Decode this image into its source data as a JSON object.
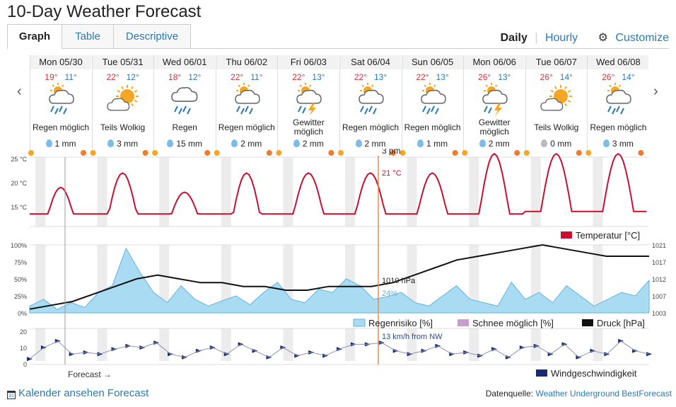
{
  "title": "10-Day Weather Forecast",
  "tabs": [
    {
      "label": "Graph",
      "active": true
    },
    {
      "label": "Table",
      "active": false
    },
    {
      "label": "Descriptive",
      "active": false
    }
  ],
  "view": {
    "daily": "Daily",
    "hourly": "Hourly",
    "customize": "Customize"
  },
  "days": [
    {
      "date": "Mon 05/30",
      "hi": "19°",
      "lo": "11°",
      "icon": "rain-sun-icon",
      "cond": "Regen möglich",
      "precip": "1 mm"
    },
    {
      "date": "Tue 05/31",
      "hi": "22°",
      "lo": "12°",
      "icon": "partly-cloudy-icon",
      "cond": "Teils Wolkig",
      "precip": "3 mm"
    },
    {
      "date": "Wed 06/01",
      "hi": "18°",
      "lo": "12°",
      "icon": "rain-icon",
      "cond": "Regen",
      "precip": "15 mm"
    },
    {
      "date": "Thu 06/02",
      "hi": "22°",
      "lo": "11°",
      "icon": "rain-sun-icon",
      "cond": "Regen möglich",
      "precip": "2 mm"
    },
    {
      "date": "Fri 06/03",
      "hi": "22°",
      "lo": "13°",
      "icon": "thunder-sun-icon",
      "cond": "Gewitter möglich",
      "precip": "2 mm"
    },
    {
      "date": "Sat 06/04",
      "hi": "22°",
      "lo": "13°",
      "icon": "rain-sun-icon",
      "cond": "Regen möglich",
      "precip": "2 mm"
    },
    {
      "date": "Sun 06/05",
      "hi": "22°",
      "lo": "13°",
      "icon": "rain-sun-icon",
      "cond": "Regen möglich",
      "precip": "1 mm"
    },
    {
      "date": "Mon 06/06",
      "hi": "26°",
      "lo": "13°",
      "icon": "thunder-sun-icon",
      "cond": "Gewitter möglich",
      "precip": "2 mm"
    },
    {
      "date": "Tue 06/07",
      "hi": "26°",
      "lo": "14°",
      "icon": "partly-cloudy-icon",
      "cond": "Teils Wolkig",
      "precip": "0 mm"
    },
    {
      "date": "Wed 06/08",
      "hi": "26°",
      "lo": "14°",
      "icon": "rain-sun-icon",
      "cond": "Regen möglich",
      "precip": "3 mm"
    }
  ],
  "graph": {
    "cursor_time": "3 pm",
    "cursor_temp": "21 °C",
    "cursor_pressure": "1010 hPa",
    "cursor_rain": "24%",
    "cursor_wind": "13 km/h from NW",
    "forecast_label": "Forecast →",
    "temp_ticks": [
      "25 °C",
      "20 °C",
      "15 °C"
    ],
    "pct_ticks": [
      "100%",
      "75%",
      "50%",
      "25%",
      "0%"
    ],
    "hpa_ticks": [
      "1021",
      "1017",
      "1012",
      "1007",
      "1003"
    ],
    "wind_ticks": [
      "20",
      "10",
      "0"
    ],
    "legend_temp": "Temperatur [°C]",
    "legend_rain": "Regenrisiko [%]",
    "legend_snow": "Schnee möglich [%]",
    "legend_pressure": "Druck [hPa]",
    "legend_wind": "Windgeschwindigkeit",
    "colors": {
      "temp": "#c8102e",
      "rain": "#a9dcf2",
      "rain_line": "#5fb3dd",
      "pressure": "#111111",
      "wind": "#1a2a6c",
      "cursor": "#f08a4b",
      "snow": "#c79ccf"
    }
  },
  "footer": {
    "calendar_icon_text": "31",
    "calendar": "Kalender ansehen Forecast",
    "source_label": "Datenquelle:",
    "source": "Weather Underground BestForecast"
  }
}
